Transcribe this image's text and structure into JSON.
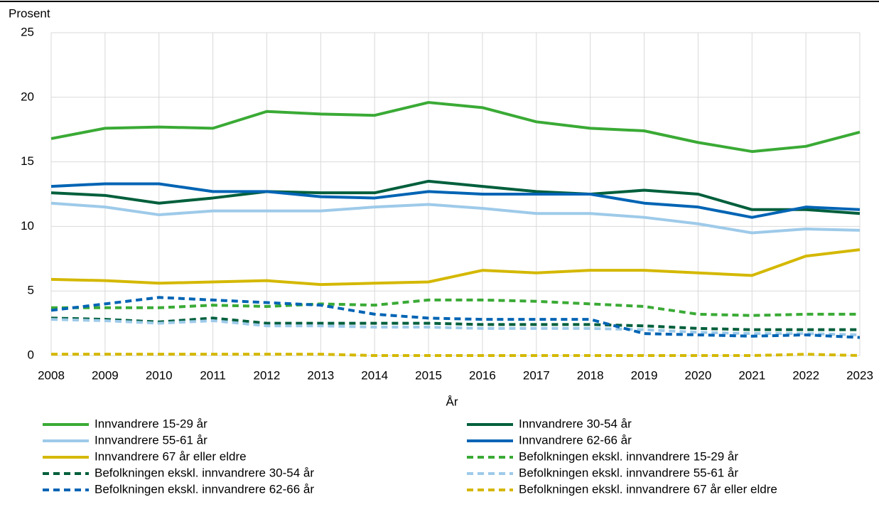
{
  "chart_data": {
    "type": "line",
    "y_label": "Prosent",
    "x_label": "År",
    "x": [
      2008,
      2009,
      2010,
      2011,
      2012,
      2013,
      2014,
      2015,
      2016,
      2017,
      2018,
      2019,
      2020,
      2021,
      2022,
      2023
    ],
    "xlim": [
      2008,
      2023
    ],
    "xticks": [
      2008,
      2009,
      2010,
      2011,
      2012,
      2013,
      2014,
      2015,
      2016,
      2017,
      2018,
      2019,
      2020,
      2021,
      2022,
      2023
    ],
    "ylim": [
      0,
      25
    ],
    "yticks": [
      0,
      5,
      10,
      15,
      20,
      25
    ],
    "grid": true,
    "series": [
      {
        "name": "Innvandrere 15-29 år",
        "color": "#3aaa35",
        "dashed": false,
        "values": [
          16.8,
          17.6,
          17.7,
          17.6,
          18.9,
          18.7,
          18.6,
          19.6,
          19.2,
          18.1,
          17.6,
          17.4,
          16.5,
          15.8,
          16.2,
          17.3
        ]
      },
      {
        "name": "Innvandrere 30-54 år",
        "color": "#005f3c",
        "dashed": false,
        "values": [
          12.6,
          12.4,
          11.8,
          12.2,
          12.7,
          12.6,
          12.6,
          13.5,
          13.1,
          12.7,
          12.5,
          12.8,
          12.5,
          11.3,
          11.3,
          11.0
        ]
      },
      {
        "name": "Innvandrere 55-61 år",
        "color": "#9ecae9",
        "dashed": false,
        "values": [
          11.8,
          11.5,
          10.9,
          11.2,
          11.2,
          11.2,
          11.5,
          11.7,
          11.4,
          11.0,
          11.0,
          10.7,
          10.2,
          9.5,
          9.8,
          9.7
        ]
      },
      {
        "name": "Innvandrere 62-66 år",
        "color": "#0064b4",
        "dashed": false,
        "values": [
          13.1,
          13.3,
          13.3,
          12.7,
          12.7,
          12.3,
          12.2,
          12.7,
          12.5,
          12.5,
          12.5,
          11.8,
          11.5,
          10.7,
          11.5,
          11.3
        ]
      },
      {
        "name": "Innvandrere 67 år eller eldre",
        "color": "#d4b800",
        "dashed": false,
        "values": [
          5.9,
          5.8,
          5.6,
          5.7,
          5.8,
          5.5,
          5.6,
          5.7,
          6.6,
          6.4,
          6.6,
          6.6,
          6.4,
          6.2,
          7.7,
          8.2
        ]
      },
      {
        "name": "Befolkningen ekskl. innvandrere 15-29 år",
        "color": "#3aaa35",
        "dashed": true,
        "values": [
          3.7,
          3.7,
          3.7,
          3.9,
          3.8,
          4.0,
          3.9,
          4.3,
          4.3,
          4.2,
          4.0,
          3.8,
          3.2,
          3.1,
          3.2,
          3.2
        ]
      },
      {
        "name": "Befolkningen ekskl. innvandrere 30-54 år",
        "color": "#005f3c",
        "dashed": true,
        "values": [
          2.9,
          2.8,
          2.6,
          2.9,
          2.5,
          2.5,
          2.5,
          2.5,
          2.4,
          2.4,
          2.4,
          2.3,
          2.1,
          2.0,
          2.0,
          2.0
        ]
      },
      {
        "name": "Befolkningen ekskl. innvandrere 55-61 år",
        "color": "#9ecae9",
        "dashed": true,
        "values": [
          2.8,
          2.7,
          2.5,
          2.7,
          2.3,
          2.3,
          2.2,
          2.2,
          2.1,
          2.1,
          2.1,
          2.0,
          1.8,
          1.7,
          1.7,
          1.6
        ]
      },
      {
        "name": "Befolkningen ekskl. innvandrere 62-66 år",
        "color": "#0064b4",
        "dashed": true,
        "values": [
          3.5,
          4.0,
          4.5,
          4.3,
          4.1,
          3.9,
          3.2,
          2.9,
          2.8,
          2.8,
          2.8,
          1.7,
          1.6,
          1.5,
          1.6,
          1.4
        ]
      },
      {
        "name": "Befolkningen ekskl. innvandrere 67 år eller eldre",
        "color": "#d4b800",
        "dashed": true,
        "values": [
          0.1,
          0.1,
          0.1,
          0.1,
          0.1,
          0.1,
          0,
          0,
          0,
          0,
          0,
          0,
          0,
          0,
          0.1,
          0
        ]
      }
    ]
  }
}
